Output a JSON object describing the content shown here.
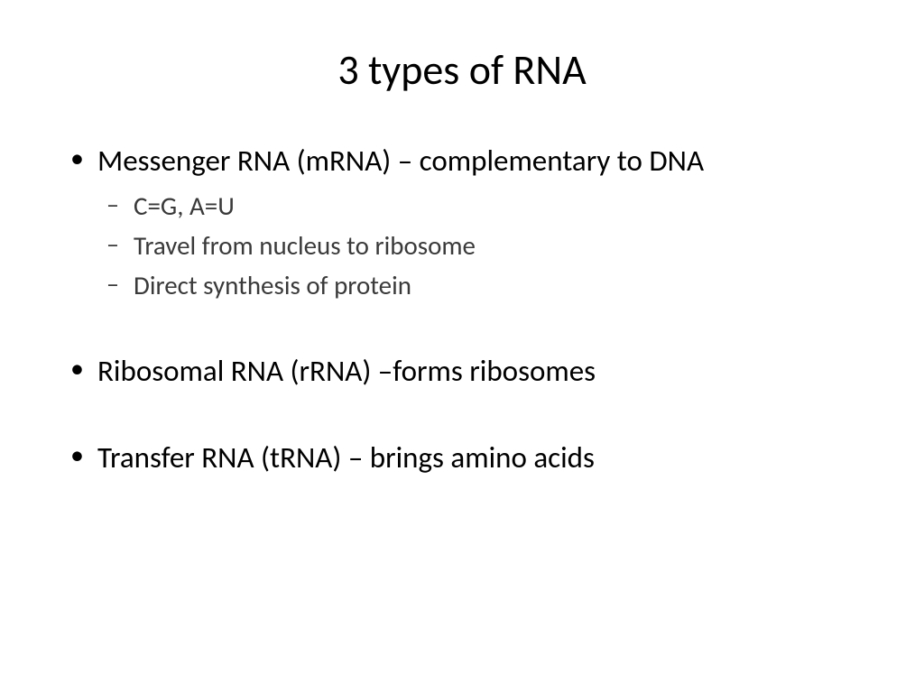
{
  "title": "3 types of RNA",
  "bullets": {
    "item1": {
      "text": "Messenger RNA (mRNA) – complementary to DNA",
      "sub1": "C=G, A=U",
      "sub2": "Travel from nucleus to ribosome",
      "sub3": "Direct synthesis of protein"
    },
    "item2": {
      "text": "Ribosomal RNA (rRNA) –forms ribosomes"
    },
    "item3": {
      "text": "Transfer RNA (tRNA) – brings amino acids"
    }
  },
  "styling": {
    "background_color": "#ffffff",
    "text_color": "#000000",
    "sub_text_color": "#3a3a3a",
    "title_fontsize": 46,
    "level1_fontsize": 33,
    "level2_fontsize": 29,
    "font_family": "Calibri"
  }
}
